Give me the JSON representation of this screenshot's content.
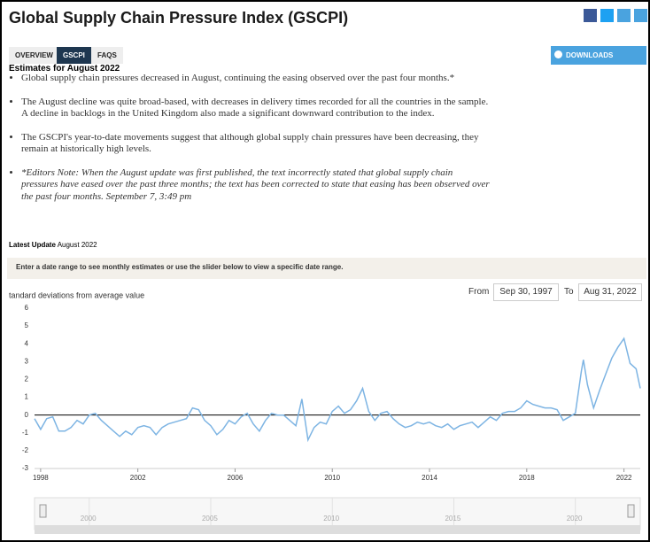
{
  "header": {
    "title": "Global Supply Chain Pressure Index (GSCPI)"
  },
  "tabs": [
    "OVERVIEW",
    "GSCPI",
    "FAQS"
  ],
  "downloads": "DOWNLOADS",
  "estimates_heading": "Estimates for August 2022",
  "bullets": [
    "Global supply chain pressures decreased in August, continuing the easing observed over the past four months.*",
    "The August decline was quite broad-based, with decreases in delivery times recorded for all the countries in the sample. A decline in backlogs in the United Kingdom also made a significant downward contribution to the index.",
    "The GSCPI's year-to-date movements suggest that although global supply chain pressures have been decreasing, they remain at historically high levels.",
    "*Editors Note: When the August update was first published, the text incorrectly stated that global supply chain pressures have eased over the past three months; the text has been corrected to state that easing has been observed over the past four months. September 7, 3:49 pm"
  ],
  "latest_update": {
    "label": "Latest Update",
    "value": "August 2022"
  },
  "instruction": "Enter a date range to see monthly estimates or use the slider below to view a specific date range.",
  "range": {
    "from_label": "From",
    "from_value": "Sep 30, 1997",
    "to_label": "To",
    "to_value": "Aug 31, 2022"
  },
  "chart_data": {
    "type": "line",
    "y_label": "tandard deviations from average value",
    "x": [
      1997.75,
      1998.0,
      1998.25,
      1998.5,
      1998.75,
      1999.0,
      1999.25,
      1999.5,
      1999.75,
      2000.0,
      2000.25,
      2000.5,
      2000.75,
      2001.0,
      2001.25,
      2001.5,
      2001.75,
      2002.0,
      2002.25,
      2002.5,
      2002.75,
      2003.0,
      2003.25,
      2003.5,
      2003.75,
      2004.0,
      2004.25,
      2004.5,
      2004.75,
      2005.0,
      2005.25,
      2005.5,
      2005.75,
      2006.0,
      2006.25,
      2006.5,
      2006.75,
      2007.0,
      2007.25,
      2007.5,
      2007.75,
      2008.0,
      2008.25,
      2008.5,
      2008.75,
      2009.0,
      2009.25,
      2009.5,
      2009.75,
      2010.0,
      2010.25,
      2010.5,
      2010.75,
      2011.0,
      2011.25,
      2011.5,
      2011.75,
      2012.0,
      2012.25,
      2012.5,
      2012.75,
      2013.0,
      2013.25,
      2013.5,
      2013.75,
      2014.0,
      2014.25,
      2014.5,
      2014.75,
      2015.0,
      2015.25,
      2015.5,
      2015.75,
      2016.0,
      2016.25,
      2016.5,
      2016.75,
      2017.0,
      2017.25,
      2017.5,
      2017.75,
      2018.0,
      2018.25,
      2018.5,
      2018.75,
      2019.0,
      2019.25,
      2019.5,
      2019.75,
      2020.0,
      2020.25,
      2020.33,
      2020.5,
      2020.75,
      2021.0,
      2021.25,
      2021.5,
      2021.75,
      2022.0,
      2022.25,
      2022.5,
      2022.67
    ],
    "series": [
      {
        "color": "#7db4e3",
        "values": [
          -0.2,
          -0.8,
          -0.2,
          -0.1,
          -0.9,
          -0.9,
          -0.7,
          -0.3,
          -0.5,
          0.0,
          0.1,
          -0.3,
          -0.6,
          -0.9,
          -1.2,
          -0.9,
          -1.1,
          -0.7,
          -0.6,
          -0.7,
          -1.1,
          -0.7,
          -0.5,
          -0.4,
          -0.3,
          -0.2,
          0.4,
          0.3,
          -0.3,
          -0.6,
          -1.1,
          -0.8,
          -0.3,
          -0.5,
          -0.1,
          0.1,
          -0.5,
          -0.9,
          -0.3,
          0.1,
          0.0,
          0.0,
          -0.3,
          -0.6,
          0.9,
          -1.4,
          -0.7,
          -0.4,
          -0.5,
          0.2,
          0.5,
          0.1,
          0.3,
          0.8,
          1.5,
          0.2,
          -0.3,
          0.1,
          0.2,
          -0.2,
          -0.5,
          -0.7,
          -0.6,
          -0.4,
          -0.5,
          -0.4,
          -0.6,
          -0.7,
          -0.5,
          -0.8,
          -0.6,
          -0.5,
          -0.4,
          -0.7,
          -0.4,
          -0.1,
          -0.3,
          0.1,
          0.2,
          0.2,
          0.4,
          0.8,
          0.6,
          0.5,
          0.4,
          0.4,
          0.3,
          -0.3,
          -0.1,
          0.1,
          2.5,
          3.1,
          1.7,
          0.4,
          1.4,
          2.3,
          3.2,
          3.8,
          4.3,
          2.9,
          2.6,
          1.5
        ]
      }
    ],
    "xlim": [
      1997.75,
      2022.67
    ],
    "xticks": [
      1998,
      2002,
      2006,
      2010,
      2014,
      2018,
      2022
    ],
    "ylim": [
      -3,
      6
    ],
    "yticks": [
      -3,
      -2,
      -1,
      0,
      1,
      2,
      3,
      4,
      5,
      6
    ],
    "navigator_ticks": [
      2000,
      2005,
      2010,
      2015,
      2020
    ]
  }
}
